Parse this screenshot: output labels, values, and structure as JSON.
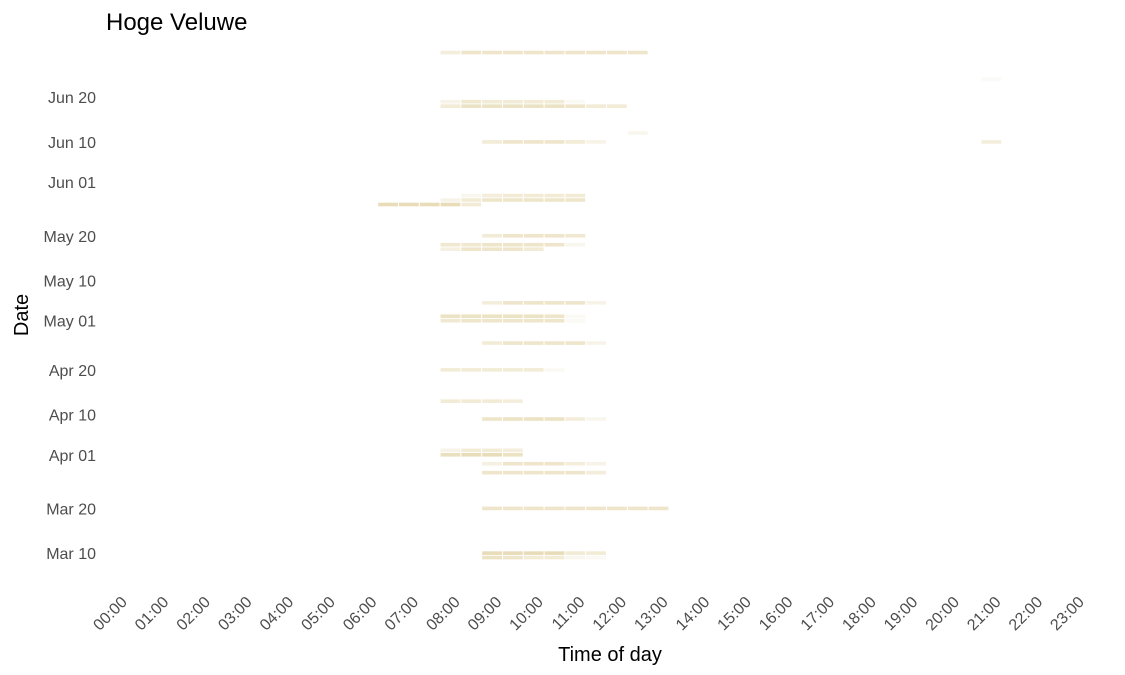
{
  "chart_data": {
    "type": "heatmap",
    "title": "Hoge Veluwe",
    "xlabel": "Time of day",
    "ylabel": "Date",
    "x_ticks": [
      "00:00",
      "01:00",
      "02:00",
      "03:00",
      "04:00",
      "05:00",
      "06:00",
      "07:00",
      "08:00",
      "09:00",
      "10:00",
      "11:00",
      "12:00",
      "13:00",
      "14:00",
      "15:00",
      "16:00",
      "17:00",
      "18:00",
      "19:00",
      "20:00",
      "21:00",
      "22:00",
      "23:00"
    ],
    "x_range_hours": [
      0,
      23
    ],
    "y_ticks": [
      {
        "label": "Mar 10",
        "day": 0
      },
      {
        "label": "Mar 20",
        "day": 10
      },
      {
        "label": "Apr 01",
        "day": 22
      },
      {
        "label": "Apr 10",
        "day": 31
      },
      {
        "label": "Apr 20",
        "day": 41
      },
      {
        "label": "May 01",
        "day": 52
      },
      {
        "label": "May 10",
        "day": 61
      },
      {
        "label": "May 20",
        "day": 71
      },
      {
        "label": "Jun 01",
        "day": 83
      },
      {
        "label": "Jun 10",
        "day": 92
      },
      {
        "label": "Jun 20",
        "day": 102
      }
    ],
    "y_range_days": [
      -4,
      111
    ],
    "grid": false,
    "legend": "none",
    "color": "#d9c58a",
    "cell_hours": 0.5,
    "rows": [
      {
        "date": "Mar 09",
        "day": -1,
        "cells": [
          [
            8.5,
            0.5
          ],
          [
            9,
            0.45
          ],
          [
            9.5,
            0.35
          ],
          [
            10,
            0.35
          ],
          [
            10.5,
            0.15
          ],
          [
            11,
            0.1
          ]
        ]
      },
      {
        "date": "Mar 10",
        "day": 0,
        "cells": [
          [
            8.5,
            0.6
          ],
          [
            9,
            0.6
          ],
          [
            9.5,
            0.6
          ],
          [
            10,
            0.6
          ],
          [
            10.5,
            0.35
          ],
          [
            11,
            0.35
          ]
        ]
      },
      {
        "date": "Mar 20",
        "day": 10,
        "cells": [
          [
            8.5,
            0.45
          ],
          [
            9,
            0.45
          ],
          [
            9.5,
            0.45
          ],
          [
            10,
            0.45
          ],
          [
            10.5,
            0.45
          ],
          [
            11,
            0.45
          ],
          [
            11.5,
            0.45
          ],
          [
            12,
            0.45
          ],
          [
            12.5,
            0.45
          ]
        ]
      },
      {
        "date": "Mar 28",
        "day": 18,
        "cells": [
          [
            8.5,
            0.45
          ],
          [
            9,
            0.45
          ],
          [
            9.5,
            0.45
          ],
          [
            10,
            0.45
          ],
          [
            10.5,
            0.45
          ],
          [
            11,
            0.3
          ]
        ]
      },
      {
        "date": "Mar 30",
        "day": 20,
        "cells": [
          [
            8.5,
            0.25
          ],
          [
            9,
            0.45
          ],
          [
            9.5,
            0.45
          ],
          [
            10,
            0.45
          ],
          [
            10.5,
            0.3
          ],
          [
            11,
            0.2
          ]
        ]
      },
      {
        "date": "Apr 01",
        "day": 22,
        "cells": [
          [
            7.5,
            0.55
          ],
          [
            8,
            0.6
          ],
          [
            8.5,
            0.6
          ],
          [
            9,
            0.5
          ]
        ]
      },
      {
        "date": "Apr 02",
        "day": 23,
        "cells": [
          [
            7.5,
            0.2
          ],
          [
            8,
            0.35
          ],
          [
            8.5,
            0.35
          ],
          [
            9,
            0.3
          ]
        ]
      },
      {
        "date": "Apr 09",
        "day": 30,
        "cells": [
          [
            8.5,
            0.45
          ],
          [
            9,
            0.5
          ],
          [
            9.5,
            0.5
          ],
          [
            10,
            0.5
          ],
          [
            10.5,
            0.3
          ],
          [
            11,
            0.15
          ]
        ]
      },
      {
        "date": "Apr 13",
        "day": 34,
        "cells": [
          [
            7.5,
            0.35
          ],
          [
            8,
            0.35
          ],
          [
            8.5,
            0.35
          ],
          [
            9,
            0.3
          ]
        ]
      },
      {
        "date": "Apr 20",
        "day": 41,
        "cells": [
          [
            7.5,
            0.35
          ],
          [
            8,
            0.35
          ],
          [
            8.5,
            0.35
          ],
          [
            9,
            0.35
          ],
          [
            9.5,
            0.35
          ],
          [
            10,
            0.1
          ]
        ]
      },
      {
        "date": "Apr 26",
        "day": 47,
        "cells": [
          [
            8.5,
            0.35
          ],
          [
            9,
            0.45
          ],
          [
            9.5,
            0.45
          ],
          [
            10,
            0.45
          ],
          [
            10.5,
            0.45
          ],
          [
            11,
            0.2
          ]
        ]
      },
      {
        "date": "May 01",
        "day": 52,
        "cells": [
          [
            7.5,
            0.4
          ],
          [
            8,
            0.45
          ],
          [
            8.5,
            0.45
          ],
          [
            9,
            0.45
          ],
          [
            9.5,
            0.45
          ],
          [
            10,
            0.45
          ],
          [
            10.5,
            0.1
          ]
        ]
      },
      {
        "date": "May 02",
        "day": 53,
        "cells": [
          [
            7.5,
            0.5
          ],
          [
            8,
            0.5
          ],
          [
            8.5,
            0.5
          ],
          [
            9,
            0.5
          ],
          [
            9.5,
            0.5
          ],
          [
            10,
            0.45
          ],
          [
            10.5,
            0.1
          ]
        ]
      },
      {
        "date": "May 05",
        "day": 56,
        "cells": [
          [
            8.5,
            0.3
          ],
          [
            9,
            0.45
          ],
          [
            9.5,
            0.45
          ],
          [
            10,
            0.45
          ],
          [
            10.5,
            0.45
          ],
          [
            11,
            0.2
          ]
        ]
      },
      {
        "date": "May 17",
        "day": 68,
        "cells": [
          [
            7.5,
            0.25
          ],
          [
            8,
            0.45
          ],
          [
            8.5,
            0.45
          ],
          [
            9,
            0.45
          ],
          [
            9.5,
            0.35
          ]
        ]
      },
      {
        "date": "May 18",
        "day": 69,
        "cells": [
          [
            7.5,
            0.4
          ],
          [
            8,
            0.4
          ],
          [
            8.5,
            0.45
          ],
          [
            9,
            0.45
          ],
          [
            9.5,
            0.45
          ],
          [
            10,
            0.45
          ],
          [
            10.5,
            0.15
          ]
        ]
      },
      {
        "date": "May 20",
        "day": 71,
        "cells": [
          [
            8.5,
            0.35
          ],
          [
            9,
            0.45
          ],
          [
            9.5,
            0.45
          ],
          [
            10,
            0.45
          ],
          [
            10.5,
            0.4
          ]
        ]
      },
      {
        "date": "May 27",
        "day": 78,
        "cells": [
          [
            6,
            0.6
          ],
          [
            6.5,
            0.6
          ],
          [
            7,
            0.6
          ],
          [
            7.5,
            0.6
          ],
          [
            8,
            0.35
          ]
        ]
      },
      {
        "date": "May 28",
        "day": 79,
        "cells": [
          [
            7.5,
            0.2
          ],
          [
            8,
            0.35
          ],
          [
            8.5,
            0.45
          ],
          [
            9,
            0.45
          ],
          [
            9.5,
            0.45
          ],
          [
            10,
            0.45
          ],
          [
            10.5,
            0.45
          ]
        ]
      },
      {
        "date": "May 29",
        "day": 80,
        "cells": [
          [
            8,
            0.15
          ],
          [
            8.5,
            0.3
          ],
          [
            9,
            0.35
          ],
          [
            9.5,
            0.35
          ],
          [
            10,
            0.35
          ],
          [
            10.5,
            0.35
          ]
        ]
      },
      {
        "date": "Jun 10",
        "day": 92,
        "cells": [
          [
            8.5,
            0.35
          ],
          [
            9,
            0.45
          ],
          [
            9.5,
            0.45
          ],
          [
            10,
            0.45
          ],
          [
            10.5,
            0.35
          ],
          [
            11,
            0.2
          ],
          [
            20.5,
            0.3
          ]
        ]
      },
      {
        "date": "Jun 12",
        "day": 94,
        "cells": [
          [
            12,
            0.15
          ]
        ]
      },
      {
        "date": "Jun 18",
        "day": 100,
        "cells": [
          [
            7.5,
            0.35
          ],
          [
            8,
            0.5
          ],
          [
            8.5,
            0.5
          ],
          [
            9,
            0.5
          ],
          [
            9.5,
            0.5
          ],
          [
            10,
            0.5
          ],
          [
            10.5,
            0.45
          ],
          [
            11,
            0.35
          ],
          [
            11.5,
            0.35
          ]
        ]
      },
      {
        "date": "Jun 19",
        "day": 101,
        "cells": [
          [
            7.5,
            0.2
          ],
          [
            8,
            0.4
          ],
          [
            8.5,
            0.35
          ],
          [
            9,
            0.35
          ],
          [
            9.5,
            0.35
          ],
          [
            10,
            0.35
          ],
          [
            10.5,
            0.1
          ]
        ]
      },
      {
        "date": "Jun 24",
        "day": 106,
        "cells": [
          [
            20.5,
            0.08
          ]
        ]
      },
      {
        "date": "Jun 30",
        "day": 112,
        "cells": [
          [
            7.5,
            0.3
          ],
          [
            8,
            0.45
          ],
          [
            8.5,
            0.45
          ],
          [
            9,
            0.45
          ],
          [
            9.5,
            0.45
          ],
          [
            10,
            0.45
          ],
          [
            10.5,
            0.45
          ],
          [
            11,
            0.45
          ],
          [
            11.5,
            0.45
          ],
          [
            12,
            0.45
          ]
        ]
      }
    ]
  }
}
